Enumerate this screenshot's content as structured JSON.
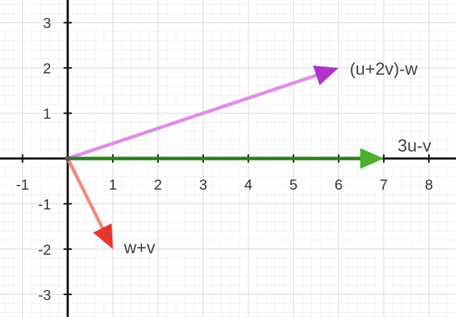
{
  "chart_data": {
    "type": "vector-plot",
    "xlim": [
      -1.5,
      8.6
    ],
    "ylim": [
      -3.5,
      3.5
    ],
    "grid": true,
    "minor_grid": true,
    "x_ticks": [
      {
        "value": -1,
        "label": "-1"
      },
      {
        "value": 1,
        "label": "1"
      },
      {
        "value": 2,
        "label": "2"
      },
      {
        "value": 3,
        "label": "3"
      },
      {
        "value": 4,
        "label": "4"
      },
      {
        "value": 5,
        "label": "5"
      },
      {
        "value": 6,
        "label": "6"
      },
      {
        "value": 7,
        "label": "7"
      },
      {
        "value": 8,
        "label": "8"
      }
    ],
    "y_ticks": [
      {
        "value": 3,
        "label": "3"
      },
      {
        "value": 2,
        "label": "2"
      },
      {
        "value": 1,
        "label": "1"
      },
      {
        "value": -1,
        "label": "-1"
      },
      {
        "value": -2,
        "label": "-2"
      },
      {
        "value": -3,
        "label": "-3"
      }
    ],
    "vectors": [
      {
        "label": "(u+2v)-w",
        "from": [
          0,
          0
        ],
        "to": [
          6,
          2
        ],
        "shaft_color": "#dd8fe6",
        "head_color": "#b332cc"
      },
      {
        "label": "3u-v",
        "from": [
          0,
          0
        ],
        "to": [
          7,
          0
        ],
        "shaft_color": "#2e7d1e",
        "head_color": "#4caf2f"
      },
      {
        "label": "w+v",
        "from": [
          0,
          0
        ],
        "to": [
          1,
          -2
        ],
        "shaft_color": "#f08a80",
        "head_color": "#e8352a"
      }
    ]
  }
}
